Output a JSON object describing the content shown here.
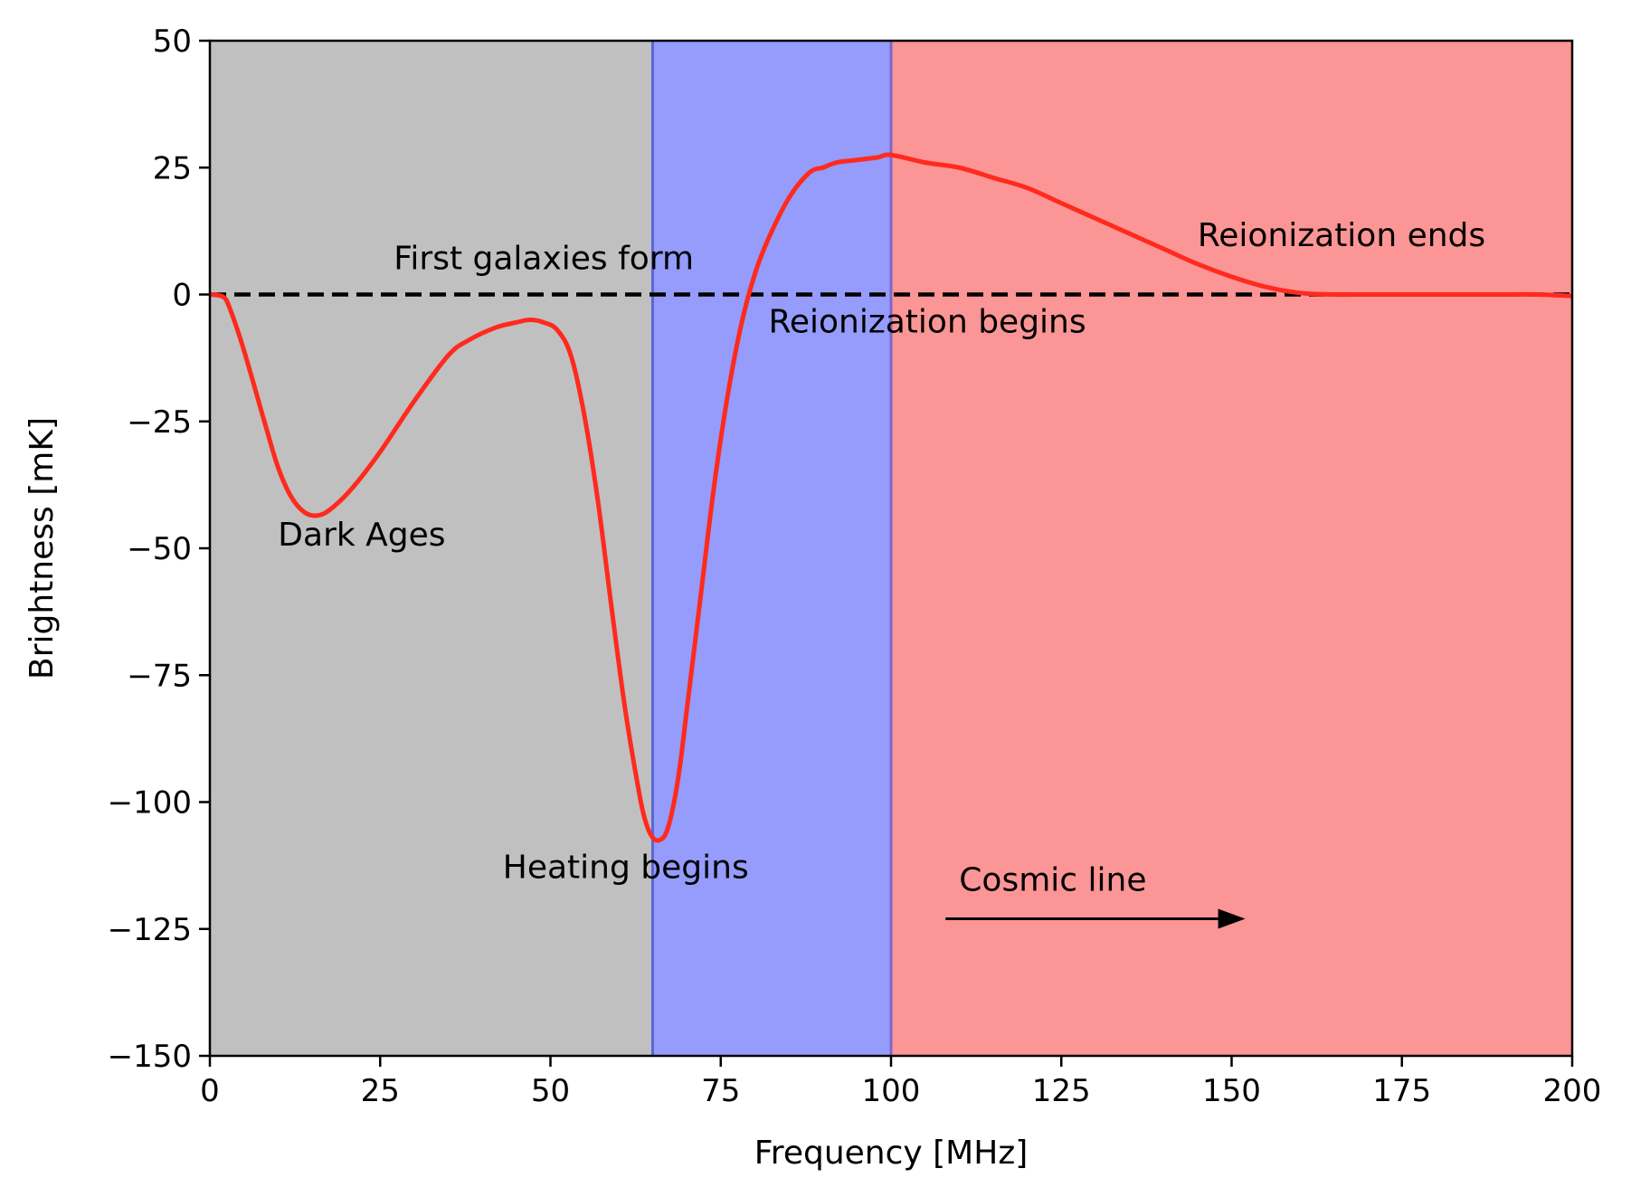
{
  "chart_data": {
    "type": "line",
    "xlabel": "Frequency [MHz]",
    "ylabel": "Brightness [mK]",
    "xlim": [
      0,
      200
    ],
    "ylim": [
      -150,
      50
    ],
    "xticks": [
      0,
      25,
      50,
      75,
      100,
      125,
      150,
      175,
      200
    ],
    "yticks": [
      50,
      25,
      0,
      -25,
      -50,
      -75,
      -100,
      -125,
      -150
    ],
    "xtick_labels": [
      "0",
      "25",
      "50",
      "75",
      "100",
      "125",
      "150",
      "175",
      "200"
    ],
    "ytick_labels": [
      "50",
      "25",
      "0",
      "−25",
      "−50",
      "−75",
      "−100",
      "−125",
      "−150"
    ],
    "grid": false,
    "regions": [
      {
        "x0": 0,
        "x1": 65,
        "color": "#c0c0c0"
      },
      {
        "x0": 65,
        "x1": 100,
        "color": "#959cfb",
        "edge_color": "#5a66d8"
      },
      {
        "x0": 100,
        "x1": 200,
        "color": "#fc9595",
        "edge_color": "#7f66c8"
      }
    ],
    "reference_line": {
      "y": 0,
      "style": "dashed",
      "color": "#000000"
    },
    "series": [
      {
        "color": "#ff2a1e",
        "x": [
          0,
          2,
          3,
          5,
          8,
          10,
          12,
          14,
          16,
          18,
          21,
          25,
          30,
          35,
          38,
          42,
          45,
          47,
          49,
          51,
          53,
          55,
          57,
          59,
          61,
          63,
          64,
          65,
          66,
          67,
          68,
          69,
          70,
          72,
          74,
          76,
          78,
          80,
          82,
          85,
          88,
          90,
          92,
          95,
          98,
          100,
          105,
          110,
          115,
          120,
          125,
          130,
          135,
          140,
          145,
          150,
          155,
          160,
          165,
          170,
          175,
          180,
          185,
          190,
          195,
          200
        ],
        "y": [
          0,
          -0.5,
          -3,
          -11,
          -25,
          -34,
          -40,
          -43,
          -43.5,
          -42,
          -38,
          -31,
          -21,
          -12,
          -9,
          -6.5,
          -5.5,
          -5,
          -5.5,
          -7,
          -12,
          -24,
          -41,
          -62,
          -82,
          -98,
          -104,
          -107,
          -107.5,
          -106,
          -101,
          -93,
          -82,
          -60,
          -38,
          -20,
          -6,
          4,
          11,
          19,
          24,
          25,
          26,
          26.5,
          27,
          27.5,
          26,
          25,
          23,
          21,
          18,
          15,
          12,
          9,
          6,
          3.5,
          1.5,
          0.3,
          0,
          0,
          0,
          0,
          0,
          0,
          0,
          -0.3
        ]
      }
    ],
    "annotations": [
      {
        "text": "Dark Ages",
        "x": 10,
        "y": -49.5
      },
      {
        "text": "First galaxies form",
        "x": 27,
        "y": 5
      },
      {
        "text": "Heating begins",
        "x": 43,
        "y": -115
      },
      {
        "text": "Reionization begins",
        "x": 82,
        "y": -7.5
      },
      {
        "text": "Reionization ends",
        "x": 145,
        "y": 9.5
      },
      {
        "text": "Cosmic line",
        "x": 110,
        "y": -117.5
      }
    ],
    "arrow": {
      "x0": 108,
      "y0": -123,
      "x1": 152,
      "y1": -123
    }
  }
}
